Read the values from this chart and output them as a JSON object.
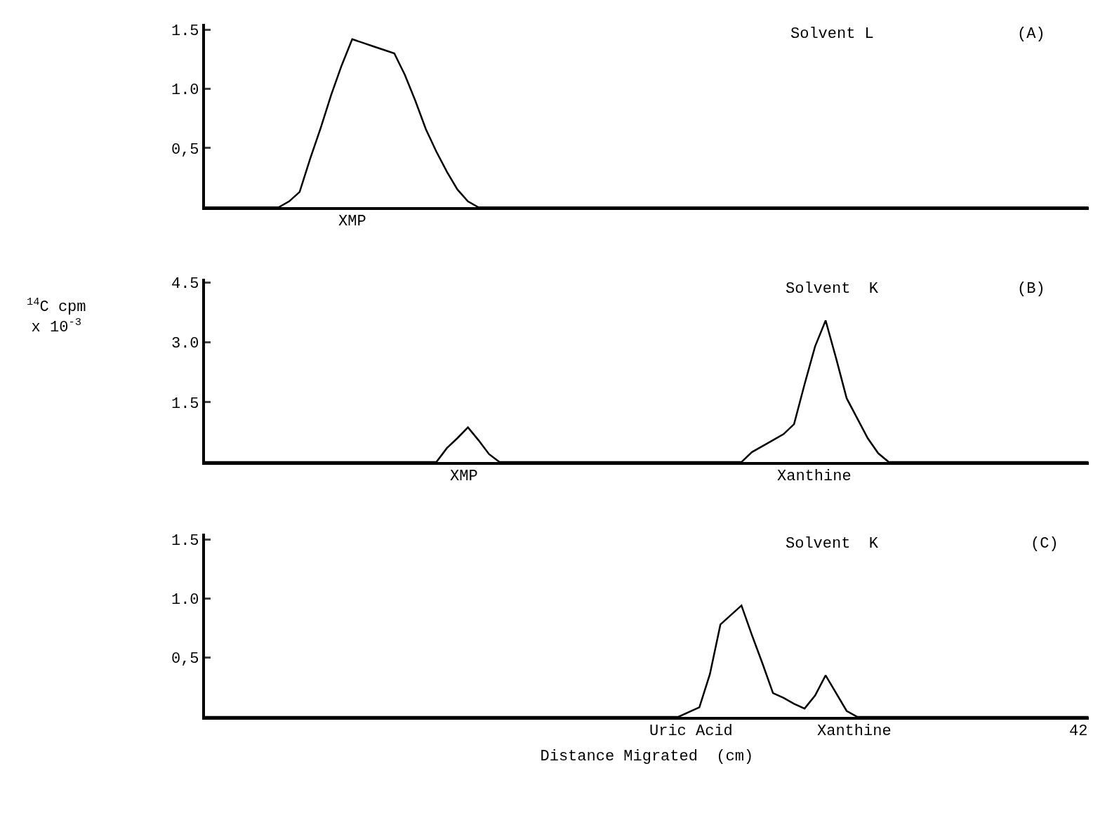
{
  "chart_data": [
    {
      "type": "line",
      "ylim": [
        0,
        1.55
      ],
      "yticks": [
        {
          "value": 0.5,
          "label": "0,5"
        },
        {
          "value": 1.0,
          "label": "1.0"
        },
        {
          "value": 1.5,
          "label": "1.5"
        }
      ],
      "tick_labels": "y",
      "marker": "none",
      "line_style": "solid",
      "categories": [
        null,
        null,
        null,
        null,
        null,
        null,
        null,
        null,
        null,
        null,
        null,
        null,
        null,
        null,
        null,
        null,
        null,
        null,
        null,
        null,
        null,
        null,
        null,
        null,
        null,
        null,
        null,
        null,
        null,
        null,
        null,
        null,
        null,
        null,
        null,
        null,
        null,
        null,
        null,
        null,
        null,
        null,
        null,
        null,
        null,
        null,
        null,
        null,
        null,
        null,
        null,
        null,
        null,
        null,
        null,
        null,
        null,
        null,
        null,
        null,
        null,
        null,
        null,
        null,
        null,
        null,
        null,
        null,
        null,
        null,
        null,
        null,
        null,
        null,
        null,
        null,
        null,
        null,
        null,
        null,
        null,
        null,
        null,
        null,
        null
      ],
      "series": [
        {
          "color": "#000000",
          "values": [
            0,
            0,
            0,
            0,
            0,
            0,
            0,
            0,
            0.05,
            0.13,
            0.41,
            0.67,
            0.95,
            1.2,
            1.42,
            1.39,
            1.36,
            1.33,
            1.3,
            1.12,
            0.9,
            0.66,
            0.47,
            0.3,
            0.15,
            0.05,
            0,
            0,
            0,
            0,
            0,
            0,
            0,
            0,
            0,
            0,
            0,
            0,
            0,
            0,
            0,
            0,
            0,
            0,
            0,
            0,
            0,
            0,
            0,
            0,
            0,
            0,
            0,
            0,
            0,
            0,
            0,
            0,
            0,
            0,
            0,
            0,
            0,
            0,
            0,
            0,
            0,
            0,
            0,
            0,
            0,
            0,
            0,
            0,
            0,
            0,
            0,
            0,
            0,
            0,
            0,
            0,
            0,
            0,
            0
          ]
        }
      ],
      "annotations": [
        "Solvent L",
        "(A)",
        "XMP"
      ]
    },
    {
      "type": "line",
      "ylim": [
        0,
        4.6
      ],
      "yticks": [
        1.5,
        {
          "value": 3,
          "label": "3.0"
        },
        4.5
      ],
      "tick_labels": "y",
      "marker": "none",
      "line_style": "solid",
      "ylabel": "$^{14}$C cpm\nx 10$^{-3}$",
      "categories": [
        null,
        null,
        null,
        null,
        null,
        null,
        null,
        null,
        null,
        null,
        null,
        null,
        null,
        null,
        null,
        null,
        null,
        null,
        null,
        null,
        null,
        null,
        null,
        null,
        null,
        null,
        null,
        null,
        null,
        null,
        null,
        null,
        null,
        null,
        null,
        null,
        null,
        null,
        null,
        null,
        null,
        null,
        null,
        null,
        null,
        null,
        null,
        null,
        null,
        null,
        null,
        null,
        null,
        null,
        null,
        null,
        null,
        null,
        null,
        null,
        null,
        null,
        null,
        null,
        null,
        null,
        null,
        null,
        null,
        null,
        null,
        null,
        null,
        null,
        null,
        null,
        null,
        null,
        null,
        null,
        null,
        null,
        null,
        null,
        null
      ],
      "series": [
        {
          "color": "#000000",
          "values": [
            0,
            0,
            0,
            0,
            0,
            0,
            0,
            0,
            0,
            0,
            0,
            0,
            0,
            0,
            0,
            0,
            0,
            0,
            0,
            0,
            0,
            0,
            0,
            0.35,
            0.6,
            0.87,
            0.55,
            0.2,
            0,
            0,
            0,
            0,
            0,
            0,
            0,
            0,
            0,
            0,
            0,
            0,
            0,
            0,
            0,
            0,
            0,
            0,
            0,
            0,
            0,
            0,
            0,
            0,
            0.25,
            0.4,
            0.55,
            0.7,
            0.95,
            1.95,
            2.9,
            3.55,
            2.6,
            1.6,
            1.1,
            0.6,
            0.22,
            0,
            0,
            0,
            0,
            0,
            0,
            0,
            0,
            0,
            0,
            0,
            0,
            0,
            0,
            0,
            0,
            0,
            0,
            0,
            0
          ]
        }
      ],
      "annotations": [
        "Solvent  K",
        "(B)",
        "XMP",
        "Xanthine"
      ]
    },
    {
      "type": "line",
      "ylim": [
        0,
        1.55
      ],
      "yticks": [
        {
          "value": 0.5,
          "label": "0,5"
        },
        {
          "value": 1.0,
          "label": "1.0"
        },
        {
          "value": 1.5,
          "label": "1.5"
        }
      ],
      "tick_labels": "y",
      "marker": "none",
      "line_style": "solid",
      "xlabel": "Distance Migrated  (cm)",
      "categories": [
        null,
        null,
        null,
        null,
        null,
        null,
        null,
        null,
        null,
        null,
        null,
        null,
        null,
        null,
        null,
        null,
        null,
        null,
        null,
        null,
        null,
        null,
        null,
        null,
        null,
        null,
        null,
        null,
        null,
        null,
        null,
        null,
        null,
        null,
        null,
        null,
        null,
        null,
        null,
        null,
        null,
        null,
        null,
        null,
        null,
        null,
        null,
        null,
        null,
        null,
        null,
        null,
        null,
        null,
        null,
        null,
        null,
        null,
        null,
        null,
        null,
        null,
        null,
        null,
        null,
        null,
        null,
        null,
        null,
        null,
        null,
        null,
        null,
        null,
        null,
        null,
        null,
        null,
        null,
        null,
        null,
        null,
        null,
        null,
        null
      ],
      "series": [
        {
          "color": "#000000",
          "values": [
            0,
            0,
            0,
            0,
            0,
            0,
            0,
            0,
            0,
            0,
            0,
            0,
            0,
            0,
            0,
            0,
            0,
            0,
            0,
            0,
            0,
            0,
            0,
            0,
            0,
            0,
            0,
            0,
            0,
            0,
            0,
            0,
            0,
            0,
            0,
            0,
            0,
            0,
            0,
            0,
            0,
            0,
            0,
            0,
            0,
            0,
            0.04,
            0.08,
            0.36,
            0.78,
            0.86,
            0.94,
            0.69,
            0.45,
            0.2,
            0.16,
            0.11,
            0.07,
            0.18,
            0.35,
            0.2,
            0.05,
            0,
            0,
            0,
            0,
            0,
            0,
            0,
            0,
            0,
            0,
            0,
            0,
            0,
            0,
            0,
            0,
            0,
            0,
            0,
            0,
            0,
            0,
            0
          ]
        }
      ],
      "annotations": [
        "Solvent  K",
        "(C)",
        "Uric Acid",
        "Xanthine",
        "42"
      ]
    }
  ]
}
